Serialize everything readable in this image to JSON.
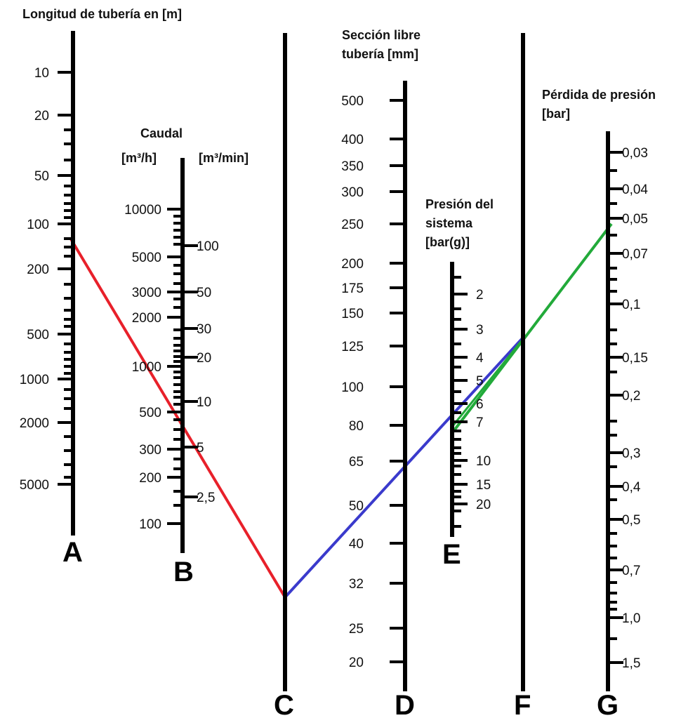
{
  "headings": {
    "A": [
      "Longitud de tubería en [m]"
    ],
    "B": [
      "Caudal"
    ],
    "B_left_unit": [
      "[m³/h]"
    ],
    "B_right_unit": [
      "[m³/min]"
    ],
    "D": [
      "Sección libre",
      "tubería  [mm]"
    ],
    "E": [
      "Presión del",
      "sistema",
      "[bar(g)]"
    ],
    "G": [
      "Pérdida de presión",
      "[bar]"
    ]
  },
  "axis_letters": {
    "A": "A",
    "B": "B",
    "C": "C",
    "D": "D",
    "E": "E",
    "F": "F",
    "G": "G"
  },
  "scales": {
    "A": {
      "labels": [
        "10",
        "20",
        "50",
        "100",
        "200",
        "500",
        "1000",
        "2000",
        "5000"
      ]
    },
    "B_left": {
      "labels": [
        "10000",
        "5000",
        "3000",
        "2000",
        "1000",
        "500",
        "300",
        "200",
        "100"
      ]
    },
    "B_right": {
      "labels": [
        "100",
        "50",
        "30",
        "20",
        "10",
        "5",
        "2,5"
      ]
    },
    "D": {
      "labels": [
        "500",
        "400",
        "350",
        "300",
        "250",
        "200",
        "175",
        "150",
        "125",
        "100",
        "80",
        "65",
        "50",
        "40",
        "32",
        "25",
        "20"
      ]
    },
    "E": {
      "labels": [
        "2",
        "3",
        "4",
        "5",
        "6",
        "7",
        "10",
        "15",
        "20"
      ]
    },
    "G": {
      "labels": [
        "0,03",
        "0,04",
        "0,05",
        "0,07",
        "0,1",
        "0,15",
        "0,2",
        "0,3",
        "0,4",
        "0,5",
        "0,7",
        "1,0",
        "1,5"
      ]
    }
  },
  "example_lines": [
    {
      "name": "red",
      "color": "#e8202a"
    },
    {
      "name": "blue",
      "color": "#3a3acc"
    },
    {
      "name": "green",
      "color": "#22aa3a"
    }
  ]
}
